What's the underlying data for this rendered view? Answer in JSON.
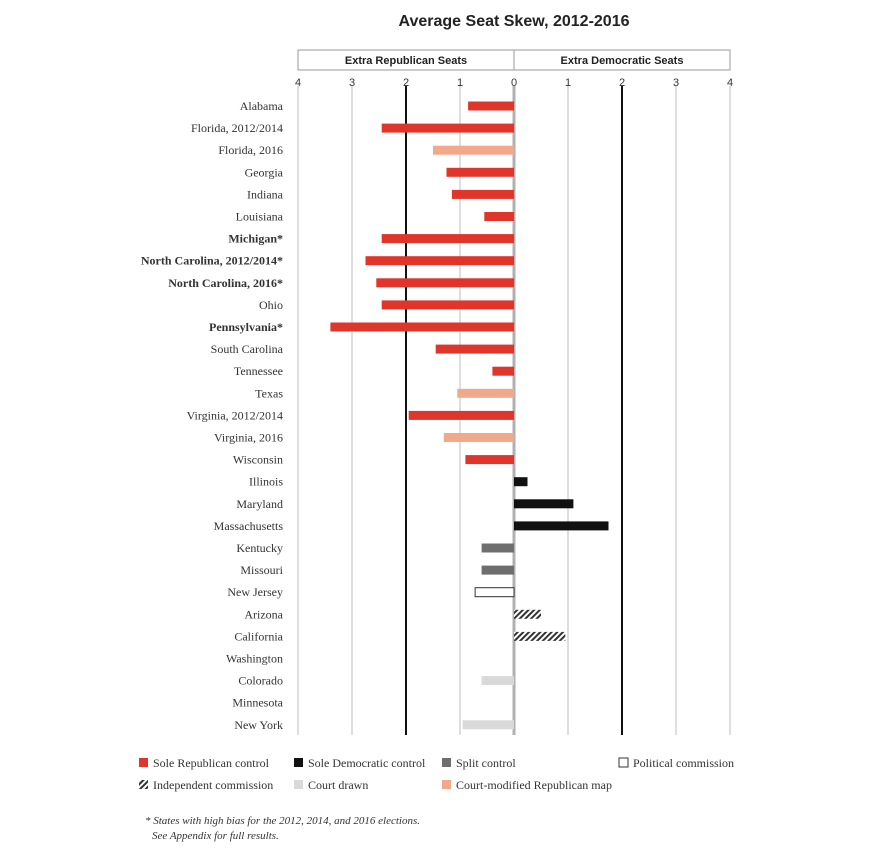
{
  "colors": {
    "sole_republican": "#e0352b",
    "sole_democratic": "#111111",
    "split": "#6e6e6e",
    "political_commission": "#ffffff",
    "independent_commission": "#333333",
    "court_drawn": "#d9d9d9",
    "court_modified_republican": "#f2a98b"
  },
  "chart_data": {
    "type": "bar",
    "orientation": "horizontal",
    "title": "Average Seat Skew, 2012-2016",
    "headers": {
      "left": "Extra Republican Seats",
      "right": "Extra Democratic Seats"
    },
    "xlim": [
      -4,
      4
    ],
    "x_tick_labels": [
      "4",
      "3",
      "2",
      "1",
      "0",
      "1",
      "2",
      "3",
      "4"
    ],
    "grid": true,
    "categories": [
      {
        "name": "Alabama",
        "value": -0.85,
        "type": "sole_republican",
        "bold": false
      },
      {
        "name": "Florida, 2012/2014",
        "value": -2.45,
        "type": "sole_republican",
        "bold": false
      },
      {
        "name": "Florida, 2016",
        "value": -1.5,
        "type": "court_modified_republican",
        "bold": false
      },
      {
        "name": "Georgia",
        "value": -1.25,
        "type": "sole_republican",
        "bold": false
      },
      {
        "name": "Indiana",
        "value": -1.15,
        "type": "sole_republican",
        "bold": false
      },
      {
        "name": "Louisiana",
        "value": -0.55,
        "type": "sole_republican",
        "bold": false
      },
      {
        "name": "Michigan*",
        "value": -2.45,
        "type": "sole_republican",
        "bold": true
      },
      {
        "name": "North Carolina, 2012/2014*",
        "value": -2.75,
        "type": "sole_republican",
        "bold": true
      },
      {
        "name": "North Carolina, 2016*",
        "value": -2.55,
        "type": "sole_republican",
        "bold": true
      },
      {
        "name": "Ohio",
        "value": -2.45,
        "type": "sole_republican",
        "bold": false
      },
      {
        "name": "Pennsylvania*",
        "value": -3.4,
        "type": "sole_republican",
        "bold": true
      },
      {
        "name": "South Carolina",
        "value": -1.45,
        "type": "sole_republican",
        "bold": false
      },
      {
        "name": "Tennessee",
        "value": -0.4,
        "type": "sole_republican",
        "bold": false
      },
      {
        "name": "Texas",
        "value": -1.05,
        "type": "court_modified_republican",
        "bold": false
      },
      {
        "name": "Virginia, 2012/2014",
        "value": -1.95,
        "type": "sole_republican",
        "bold": false
      },
      {
        "name": "Virginia, 2016",
        "value": -1.3,
        "type": "court_modified_republican",
        "bold": false
      },
      {
        "name": "Wisconsin",
        "value": -0.9,
        "type": "sole_republican",
        "bold": false
      },
      {
        "name": "Illinois",
        "value": 0.25,
        "type": "sole_democratic",
        "bold": false
      },
      {
        "name": "Maryland",
        "value": 1.1,
        "type": "sole_democratic",
        "bold": false
      },
      {
        "name": "Massachusetts",
        "value": 1.75,
        "type": "sole_democratic",
        "bold": false
      },
      {
        "name": "Kentucky",
        "value": -0.6,
        "type": "split",
        "bold": false
      },
      {
        "name": "Missouri",
        "value": -0.6,
        "type": "split",
        "bold": false
      },
      {
        "name": "New Jersey",
        "value": -0.72,
        "type": "political_commission",
        "bold": false
      },
      {
        "name": "Arizona",
        "value": 0.5,
        "type": "independent_commission",
        "bold": false
      },
      {
        "name": "California",
        "value": 0.95,
        "type": "independent_commission",
        "bold": false
      },
      {
        "name": "Washington",
        "value": 0,
        "type": "independent_commission",
        "bold": false
      },
      {
        "name": "Colorado",
        "value": -0.6,
        "type": "court_drawn",
        "bold": false
      },
      {
        "name": "Minnesota",
        "value": 0,
        "type": "court_drawn",
        "bold": false
      },
      {
        "name": "New York",
        "value": -0.95,
        "type": "court_drawn",
        "bold": false
      }
    ],
    "legend": [
      {
        "label": "Sole Republican control",
        "type": "sole_republican"
      },
      {
        "label": "Sole Democratic control",
        "type": "sole_democratic"
      },
      {
        "label": "Split control",
        "type": "split"
      },
      {
        "label": "Political commission",
        "type": "political_commission"
      },
      {
        "label": "Independent commission",
        "type": "independent_commission"
      },
      {
        "label": "Court drawn",
        "type": "court_drawn"
      },
      {
        "label": "Court-modified Republican map",
        "type": "court_modified_republican"
      }
    ],
    "footnote": [
      "* States with high bias for the 2012, 2014, and 2016 elections.",
      "See Appendix for full results."
    ]
  }
}
